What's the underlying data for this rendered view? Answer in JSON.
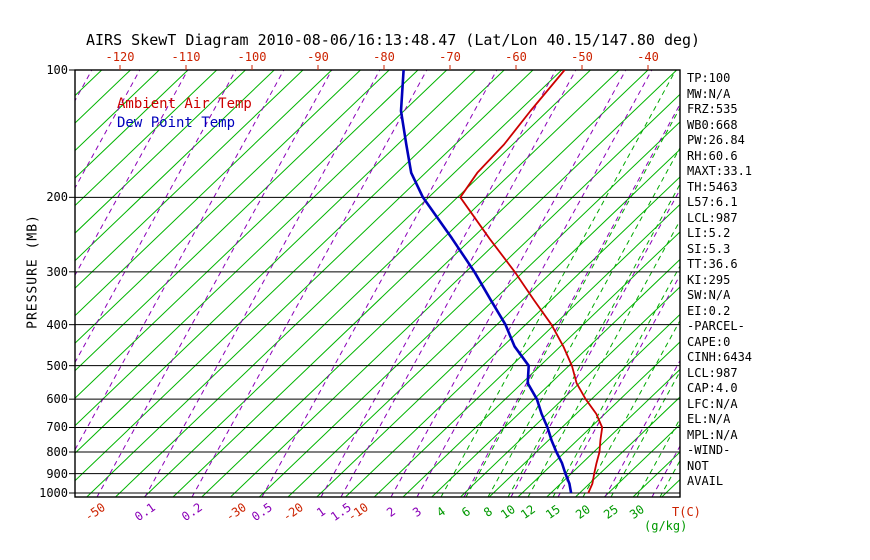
{
  "title": "AIRS SkewT Diagram 2010-08-06/16:13:48.47 (Lat/Lon 40.15/147.80 deg)",
  "legend": {
    "temperature": "Ambient Air Temp",
    "dew_point": "Dew Point Temp"
  },
  "left_axis": {
    "label": "PRESSURE (MB)",
    "ticks": [
      100,
      200,
      300,
      400,
      500,
      600,
      700,
      800,
      900,
      1000
    ]
  },
  "top_axis": {
    "labels": [
      "-120",
      "-110",
      "-100",
      "-90",
      "-80",
      "-70",
      "-60",
      "-50",
      "-40"
    ],
    "x_start": 120,
    "x_step": 66
  },
  "bottom_axis": {
    "temp_unit": "T(C)",
    "mixing_unit": "(g/kg)",
    "labels": [
      {
        "text": "-50",
        "kind": "temp",
        "x": 95
      },
      {
        "text": "0.1",
        "kind": "mr_purple",
        "x": 145
      },
      {
        "text": "0.2",
        "kind": "mr_purple",
        "x": 192
      },
      {
        "text": "-30",
        "kind": "temp",
        "x": 236
      },
      {
        "text": "0.5",
        "kind": "mr_purple",
        "x": 262
      },
      {
        "text": "-20",
        "kind": "temp",
        "x": 293
      },
      {
        "text": "1",
        "kind": "mr_purple",
        "x": 321
      },
      {
        "text": "1.5",
        "kind": "mr_purple",
        "x": 341
      },
      {
        "text": "-10",
        "kind": "temp",
        "x": 358
      },
      {
        "text": "2",
        "kind": "mr_purple",
        "x": 391
      },
      {
        "text": "3",
        "kind": "mr_purple",
        "x": 417
      },
      {
        "text": "4",
        "kind": "mr_green",
        "x": 441
      },
      {
        "text": "6",
        "kind": "mr_green",
        "x": 466
      },
      {
        "text": "8",
        "kind": "mr_green",
        "x": 488
      },
      {
        "text": "10",
        "kind": "mr_green",
        "x": 508
      },
      {
        "text": "12",
        "kind": "mr_green",
        "x": 528
      },
      {
        "text": "15",
        "kind": "mr_green",
        "x": 553
      },
      {
        "text": "20",
        "kind": "mr_green",
        "x": 583
      },
      {
        "text": "25",
        "kind": "mr_green",
        "x": 611
      },
      {
        "text": "30",
        "kind": "mr_green",
        "x": 637
      }
    ]
  },
  "stats_panel": [
    "TP:100",
    "MW:N/A",
    "FRZ:535",
    "WB0:668",
    "PW:26.84",
    "RH:60.6",
    "MAXT:33.1",
    "TH:5463",
    "L57:6.1",
    "LCL:987",
    "LI:5.2",
    "SI:5.3",
    "TT:36.6",
    "KI:295",
    "SW:N/A",
    "EI:0.2",
    "-PARCEL-",
    "CAPE:0",
    "CINH:6434",
    "LCL:987",
    "CAP:4.0",
    "LFC:N/A",
    "EL:N/A",
    "MPL:N/A",
    "-WIND-",
    "NOT",
    "AVAIL"
  ],
  "colors": {
    "temperature": "#cc0000",
    "dew_point": "#0000bb",
    "isotherm": "#00b400",
    "mixing_ratio": "#00a800",
    "moist_adiabat": "#8a00b8",
    "axis_red": "#cc2200",
    "label_purple": "#8a00b8",
    "label_green": "#009900",
    "frame": "#000000"
  },
  "chart_data": {
    "type": "line",
    "subtype": "skewT-logP",
    "title": "AIRS SkewT Diagram 2010-08-06/16:13:48.47 (Lat/Lon 40.15/147.80 deg)",
    "xlabel": "T(C)",
    "ylabel": "PRESSURE (MB)",
    "y_scale": "log",
    "y_range_mb": [
      100,
      1000
    ],
    "top_temp_labels_c": [
      -120,
      -110,
      -100,
      -90,
      -80,
      -70,
      -60,
      -50,
      -40
    ],
    "bottom_temp_labels_c": [
      -50,
      -30,
      -20,
      -10
    ],
    "mixing_ratio_labels_gkg": [
      0.1,
      0.2,
      0.5,
      1,
      1.5,
      2,
      3,
      4,
      6,
      8,
      10,
      12,
      15,
      20,
      25,
      30
    ],
    "isotherms_c": {
      "min": -135,
      "max": 45,
      "step": 5
    },
    "purple_line_x": [
      -239,
      -191,
      -143,
      -95,
      -47,
      1,
      49,
      97,
      145,
      192,
      262,
      321,
      341,
      391,
      417,
      464,
      511,
      558,
      605,
      652,
      699
    ],
    "green_line_x": [
      441,
      466,
      488,
      508,
      528,
      553,
      583,
      611,
      637,
      660,
      682,
      704
    ],
    "series": [
      {
        "id": "temperature-curve",
        "name": "Ambient Air Temp",
        "color": "#cc0000",
        "width": 1.8,
        "points_p_mb_t_c": [
          [
            1000,
            31.5
          ],
          [
            950,
            30.5
          ],
          [
            900,
            29.0
          ],
          [
            850,
            27.5
          ],
          [
            800,
            26.0
          ],
          [
            750,
            24.0
          ],
          [
            700,
            22.0
          ],
          [
            650,
            18.5
          ],
          [
            600,
            14.0
          ],
          [
            550,
            9.5
          ],
          [
            500,
            5.5
          ],
          [
            450,
            0.5
          ],
          [
            400,
            -5.5
          ],
          [
            350,
            -13.0
          ],
          [
            300,
            -21.5
          ],
          [
            250,
            -32.0
          ],
          [
            200,
            -44.5
          ],
          [
            175,
            -46.0
          ],
          [
            150,
            -46.5
          ],
          [
            125,
            -48.0
          ],
          [
            100,
            -49.5
          ]
        ]
      },
      {
        "id": "dewpoint-curve",
        "name": "Dew Point Temp",
        "color": "#0000bb",
        "width": 2.6,
        "points_p_mb_t_c": [
          [
            1000,
            28.5
          ],
          [
            950,
            26.5
          ],
          [
            900,
            24.0
          ],
          [
            850,
            21.5
          ],
          [
            800,
            18.5
          ],
          [
            750,
            15.5
          ],
          [
            700,
            12.5
          ],
          [
            650,
            9.0
          ],
          [
            600,
            5.5
          ],
          [
            550,
            1.0
          ],
          [
            500,
            -2.0
          ],
          [
            450,
            -8.0
          ],
          [
            400,
            -13.5
          ],
          [
            350,
            -20.5
          ],
          [
            300,
            -28.5
          ],
          [
            250,
            -38.5
          ],
          [
            200,
            -51.0
          ],
          [
            175,
            -57.5
          ],
          [
            150,
            -63.5
          ],
          [
            125,
            -70.5
          ],
          [
            100,
            -77.5
          ]
        ]
      }
    ],
    "legend_position": "top-left-inside",
    "grid": "skewT background: green solid isotherms, green dashed mixing-ratio lines, purple dashed moist adiabats, black horizontal isobars"
  }
}
